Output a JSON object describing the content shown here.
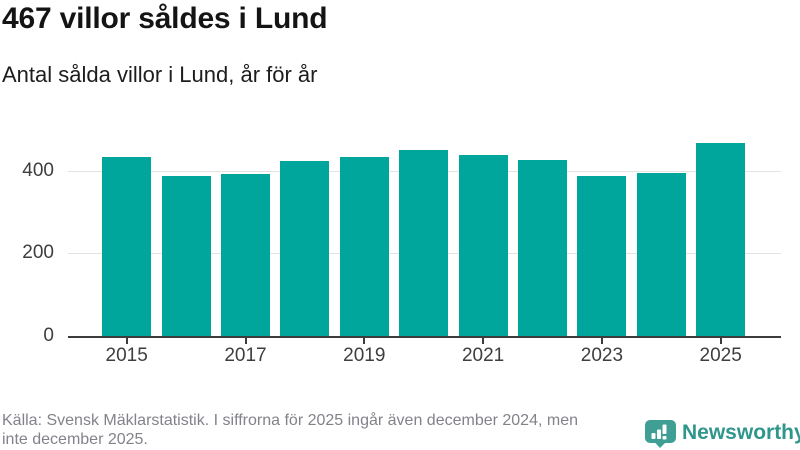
{
  "chart_data": {
    "type": "bar",
    "title": "467 villor såldes i Lund",
    "subtitle": "Antal sålda villor i Lund, år för år",
    "categories": [
      "2015",
      "2016",
      "2017",
      "2018",
      "2019",
      "2020",
      "2021",
      "2022",
      "2023",
      "2024",
      "2025"
    ],
    "values": [
      434,
      388,
      393,
      425,
      435,
      452,
      439,
      427,
      388,
      394,
      467
    ],
    "xlabel": "",
    "ylabel": "",
    "ylim": [
      0,
      475
    ],
    "yticks": [
      0,
      200,
      400
    ],
    "ytick_labels": [
      "0",
      "200",
      "400"
    ],
    "xtick_labels": [
      "2015",
      "2017",
      "2019",
      "2021",
      "2023",
      "2025"
    ],
    "grid": "horizontal",
    "legend": "none",
    "bar_color": "#00a59c"
  },
  "footer": {
    "source_line1": "Källa: Svensk Mäklarstatistik. I siffrorna för 2025 ingår även december 2024, men",
    "source_line2": "inte december 2025.",
    "brand": "Newsworthy",
    "brand_color": "#2f968c",
    "logo_color": "#3f9f95",
    "logo_icon": "newsworthy-speech-bubble-chart-icon"
  }
}
